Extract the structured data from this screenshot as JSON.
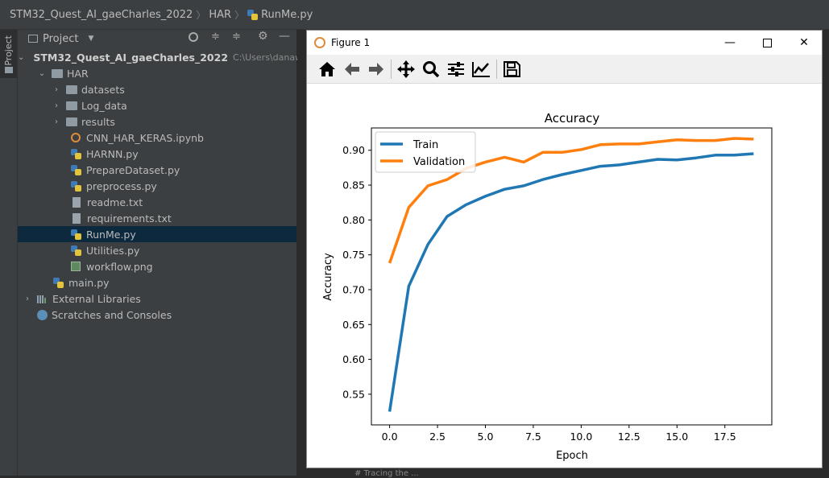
{
  "breadcrumb": {
    "project": "STM32_Quest_AI_gaeCharles_2022",
    "folder": "HAR",
    "file": "RunMe.py"
  },
  "stripe": {
    "label": "Project"
  },
  "project_panel": {
    "title": "Project",
    "tree": [
      {
        "label": "STM32_Quest_AI_gaeCharles_2022",
        "path": "C:\\Users\\danawa",
        "kind": "folder",
        "expanded": true
      },
      {
        "label": "HAR",
        "kind": "folder",
        "expanded": true
      },
      {
        "label": "datasets",
        "kind": "folder",
        "expanded": false
      },
      {
        "label": "Log_data",
        "kind": "folder",
        "expanded": false
      },
      {
        "label": "results",
        "kind": "folder",
        "expanded": false
      },
      {
        "label": "CNN_HAR_KERAS.ipynb",
        "kind": "notebook"
      },
      {
        "label": "HARNN.py",
        "kind": "python"
      },
      {
        "label": "PrepareDataset.py",
        "kind": "python"
      },
      {
        "label": "preprocess.py",
        "kind": "python"
      },
      {
        "label": "readme.txt",
        "kind": "text"
      },
      {
        "label": "requirements.txt",
        "kind": "text"
      },
      {
        "label": "RunMe.py",
        "kind": "python",
        "selected": true
      },
      {
        "label": "Utilities.py",
        "kind": "python"
      },
      {
        "label": "workflow.png",
        "kind": "image"
      },
      {
        "label": "main.py",
        "kind": "python"
      },
      {
        "label": "External Libraries",
        "kind": "library"
      },
      {
        "label": "Scratches and Consoles",
        "kind": "scratch"
      }
    ]
  },
  "editor": {
    "status_text": "# Tracing the ..."
  },
  "figure": {
    "window_title": "Figure 1",
    "toolbar": [
      "home-icon",
      "back-icon",
      "forward-icon",
      "pan-icon",
      "zoom-icon",
      "configure-subplots-icon",
      "edit-axis-icon",
      "save-icon"
    ]
  },
  "chart_data": {
    "type": "line",
    "title": "Accuracy",
    "xlabel": "Epoch",
    "ylabel": "Accuracy",
    "xlim": [
      -0.95,
      19.95
    ],
    "ylim": [
      0.506,
      0.932
    ],
    "xticks": [
      "0.0",
      "2.5",
      "5.0",
      "7.5",
      "10.0",
      "12.5",
      "15.0",
      "17.5"
    ],
    "yticks": [
      "0.55",
      "0.60",
      "0.65",
      "0.70",
      "0.75",
      "0.80",
      "0.85",
      "0.90"
    ],
    "legend": "upper left",
    "grid": false,
    "x": [
      0,
      1,
      2,
      3,
      4,
      5,
      6,
      7,
      8,
      9,
      10,
      11,
      12,
      13,
      14,
      15,
      16,
      17,
      18,
      19
    ],
    "series": [
      {
        "name": "Train",
        "color": "#1f77b4",
        "values": [
          0.525,
          0.705,
          0.765,
          0.805,
          0.822,
          0.834,
          0.844,
          0.849,
          0.858,
          0.865,
          0.871,
          0.877,
          0.879,
          0.883,
          0.887,
          0.886,
          0.889,
          0.893,
          0.893,
          0.895
        ]
      },
      {
        "name": "Validation",
        "color": "#ff7f0e",
        "values": [
          0.738,
          0.818,
          0.849,
          0.858,
          0.874,
          0.883,
          0.89,
          0.883,
          0.897,
          0.897,
          0.901,
          0.908,
          0.909,
          0.909,
          0.912,
          0.915,
          0.914,
          0.914,
          0.917,
          0.916
        ]
      }
    ]
  }
}
